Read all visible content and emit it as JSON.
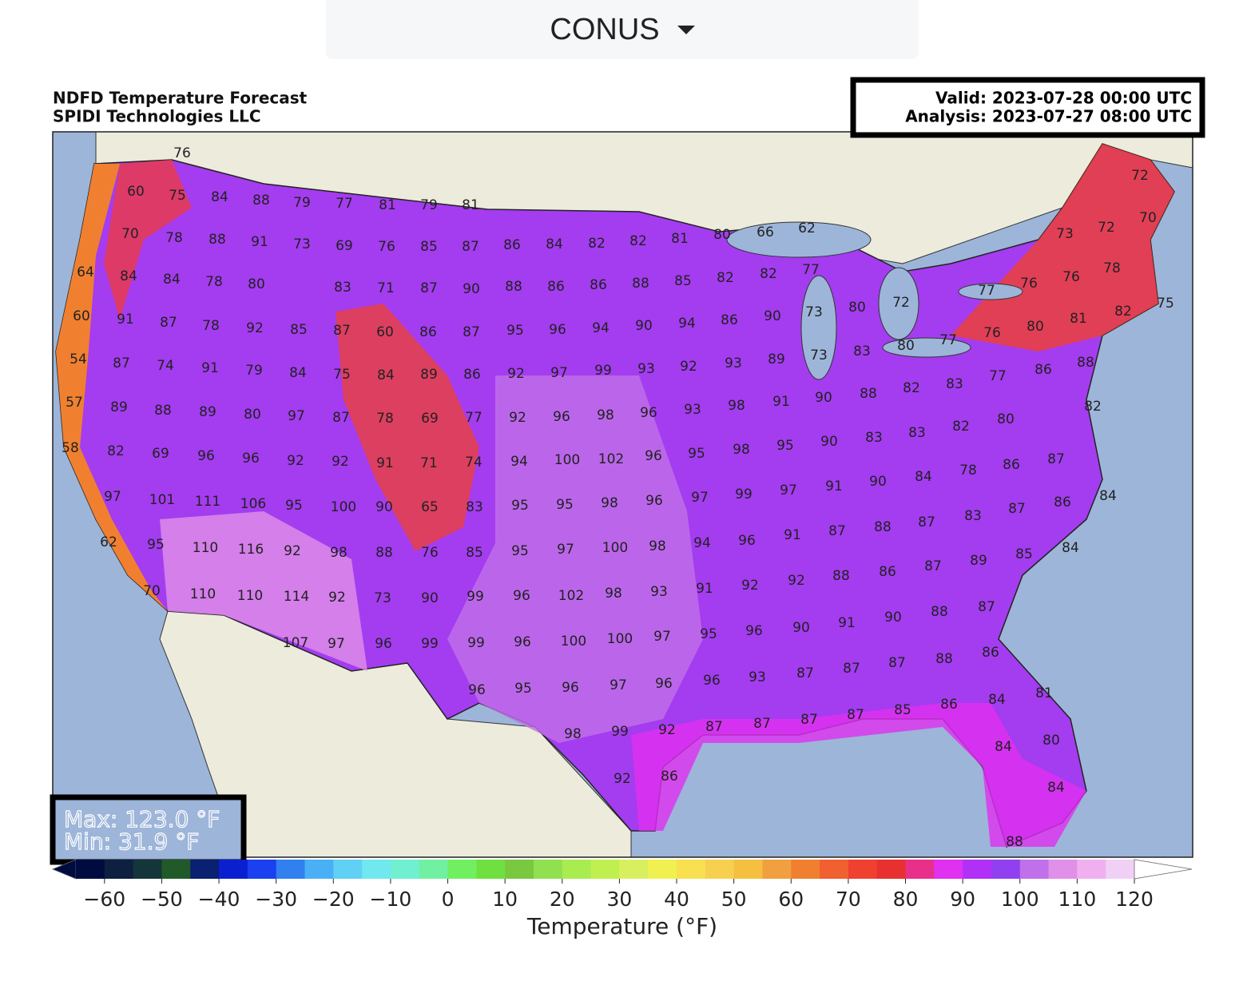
{
  "header": {
    "dropdown": "CONUS"
  },
  "map": {
    "title": "NDFD Temperature Forecast",
    "subtitle": "SPIDI Technologies LLC",
    "valid": "Valid: 2023-07-28 00:00 UTC",
    "analysis": "Analysis: 2023-07-27 08:00 UTC",
    "max": "Max: 123.0 °F",
    "min": "Min: 31.9 °F",
    "station_values": [
      76,
      60,
      75,
      84,
      88,
      79,
      77,
      81,
      79,
      81,
      72,
      66,
      62,
      70,
      72,
      73,
      80,
      70,
      78,
      88,
      91,
      73,
      69,
      76,
      85,
      87,
      86,
      84,
      82,
      82,
      81,
      77,
      64,
      84,
      84,
      78,
      80,
      83,
      71,
      87,
      90,
      88,
      86,
      86,
      88,
      85,
      82,
      82,
      76,
      76,
      78,
      73,
      80,
      72,
      77,
      75,
      82,
      81,
      80,
      60,
      91,
      87,
      78,
      92,
      85,
      87,
      60,
      86,
      87,
      95,
      96,
      94,
      90,
      94,
      86,
      90,
      73,
      83,
      80,
      77,
      76,
      88,
      86,
      89,
      93,
      92,
      93,
      99,
      97,
      92,
      86,
      89,
      84,
      75,
      84,
      79,
      91,
      74,
      87,
      54,
      77,
      83,
      82,
      88,
      90,
      91,
      98,
      93,
      96,
      98,
      96,
      92,
      77,
      69,
      78,
      87,
      97,
      80,
      89,
      88,
      89,
      57,
      82,
      80,
      82,
      83,
      83,
      90,
      95,
      98,
      95,
      96,
      102,
      100,
      94,
      74,
      71,
      91,
      92,
      92,
      96,
      96,
      69,
      82,
      58,
      87,
      86,
      78,
      84,
      90,
      91,
      97,
      99,
      97,
      96,
      98,
      95,
      95,
      83,
      65,
      90,
      100,
      95,
      106,
      111,
      101,
      97,
      84,
      86,
      87,
      83,
      87,
      88,
      87,
      91,
      96,
      94,
      98,
      100,
      97,
      95,
      85,
      76,
      88,
      98,
      92,
      116,
      110,
      95,
      62,
      84,
      85,
      89,
      87,
      86,
      88,
      92,
      92,
      91,
      93,
      98,
      102,
      96,
      99,
      90,
      73,
      92,
      114,
      110,
      110,
      70,
      87,
      88,
      90,
      91,
      90,
      96,
      95,
      97,
      100,
      100,
      96,
      99,
      99,
      96,
      97,
      107,
      86,
      88,
      87,
      87,
      87,
      93,
      96,
      96,
      97,
      96,
      95,
      96,
      81,
      84,
      86,
      85,
      87,
      87,
      87,
      87,
      92,
      99,
      98,
      80,
      84,
      86,
      92,
      84,
      88
    ]
  },
  "colorbar": {
    "label": "Temperature (°F)",
    "xlim": [
      -65,
      120
    ],
    "bin_width": 5,
    "ticks": [
      {
        "value": -60,
        "label": "−60"
      },
      {
        "value": -50,
        "label": "−50"
      },
      {
        "value": -40,
        "label": "−40"
      },
      {
        "value": -30,
        "label": "−30"
      },
      {
        "value": -20,
        "label": "−20"
      },
      {
        "value": -10,
        "label": "−10"
      },
      0,
      10,
      20,
      30,
      40,
      50,
      60,
      70,
      80,
      90,
      100,
      110,
      120
    ],
    "colors": [
      "#000c40",
      "#0d2040",
      "#14353a",
      "#205a28",
      "#0a2070",
      "#0a20d0",
      "#1a40f0",
      "#3080f0",
      "#4ab0f5",
      "#60d0f5",
      "#70e8f0",
      "#70f0d0",
      "#70f0a0",
      "#70f060",
      "#70e040",
      "#7ac840",
      "#90e050",
      "#a8ec50",
      "#c0f050",
      "#d8f060",
      "#f0f050",
      "#f8e050",
      "#f8d050",
      "#f5c040",
      "#f0a040",
      "#f08030",
      "#f06030",
      "#f04030",
      "#e83030",
      "#e8308a",
      "#e030f0",
      "#b030f8",
      "#9040f0",
      "#c070e8",
      "#e090e8",
      "#f0b0f0",
      "#f0d0f5"
    ],
    "under_color": "#000c40",
    "over_color": "#ffffff"
  }
}
